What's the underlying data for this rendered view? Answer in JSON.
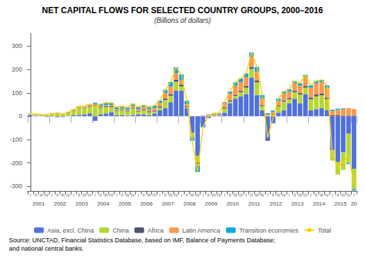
{
  "chart_data": {
    "type": "bar",
    "title": "NET CAPITAL FLOWS FOR SELECTED COUNTRY GROUPS, 2000–2016",
    "subtitle": "(Billions of dollars)",
    "stacked": true,
    "grid": false,
    "legend": "bottom",
    "categories": [
      "I",
      "II",
      "III",
      "IV",
      "I",
      "II",
      "III",
      "IV",
      "I",
      "II",
      "III",
      "IV",
      "I",
      "II",
      "III",
      "IV",
      "I",
      "II",
      "III",
      "IV",
      "I",
      "II",
      "III",
      "IV",
      "I",
      "II",
      "III",
      "IV",
      "I",
      "II",
      "III",
      "IV",
      "I",
      "II",
      "III",
      "IV",
      "I",
      "II",
      "III",
      "IV",
      "I",
      "II",
      "III",
      "IV",
      "I",
      "II",
      "III",
      "IV",
      "I",
      "II",
      "III",
      "IV",
      "I",
      "II",
      "III",
      "IV",
      "I",
      "II",
      "III",
      "IV",
      "I"
    ],
    "year_labels": [
      "2001",
      "2002",
      "2003",
      "2004",
      "2005",
      "2006",
      "2007",
      "2008",
      "2009",
      "2010",
      "2011",
      "2012",
      "2013",
      "2014",
      "2015",
      "20"
    ],
    "series": [
      {
        "name": "Asia, excl. China",
        "values": [
          5,
          2,
          0,
          -3,
          -2,
          -4,
          -3,
          1,
          4,
          6,
          8,
          12,
          -20,
          8,
          12,
          18,
          5,
          5,
          3,
          5,
          8,
          8,
          5,
          12,
          25,
          35,
          60,
          110,
          110,
          35,
          -70,
          -170,
          -45,
          -8,
          3,
          3,
          15,
          55,
          75,
          85,
          95,
          165,
          90,
          25,
          -100,
          -30,
          15,
          25,
          55,
          75,
          55,
          95,
          25,
          30,
          35,
          25,
          -145,
          -195,
          -155,
          -75,
          -225
        ]
      },
      {
        "name": "China",
        "values": [
          2,
          3,
          3,
          5,
          8,
          12,
          8,
          12,
          18,
          30,
          25,
          28,
          45,
          28,
          28,
          22,
          18,
          22,
          18,
          28,
          12,
          18,
          12,
          8,
          12,
          35,
          28,
          38,
          18,
          3,
          -18,
          -28,
          0,
          3,
          3,
          3,
          18,
          8,
          12,
          18,
          28,
          38,
          55,
          18,
          3,
          8,
          28,
          38,
          18,
          28,
          38,
          28,
          48,
          55,
          55,
          48,
          -45,
          -55,
          -75,
          -125,
          -88
        ]
      },
      {
        "name": "Africa",
        "values": [
          1,
          1,
          1,
          1,
          1,
          1,
          1,
          2,
          2,
          2,
          2,
          2,
          3,
          3,
          3,
          3,
          3,
          3,
          3,
          3,
          3,
          4,
          4,
          4,
          5,
          6,
          7,
          8,
          8,
          5,
          -2,
          -5,
          0,
          0,
          2,
          3,
          4,
          5,
          5,
          6,
          7,
          8,
          8,
          5,
          -5,
          3,
          4,
          5,
          5,
          6,
          6,
          6,
          7,
          8,
          8,
          7,
          5,
          5,
          3,
          3,
          3
        ]
      },
      {
        "name": "Latin America",
        "values": [
          2,
          2,
          2,
          2,
          2,
          2,
          2,
          2,
          3,
          3,
          4,
          5,
          5,
          5,
          5,
          5,
          5,
          5,
          5,
          8,
          8,
          10,
          10,
          12,
          15,
          22,
          32,
          28,
          18,
          8,
          -5,
          -8,
          3,
          3,
          3,
          3,
          18,
          28,
          38,
          38,
          38,
          42,
          38,
          28,
          5,
          8,
          18,
          28,
          28,
          32,
          32,
          38,
          42,
          48,
          48,
          42,
          18,
          22,
          28,
          32,
          28
        ]
      },
      {
        "name": "Transition economies",
        "values": [
          1,
          1,
          1,
          1,
          1,
          1,
          1,
          1,
          2,
          2,
          3,
          5,
          5,
          8,
          10,
          10,
          8,
          8,
          8,
          10,
          8,
          8,
          8,
          10,
          10,
          15,
          20,
          25,
          25,
          15,
          -10,
          -28,
          -3,
          2,
          2,
          2,
          5,
          10,
          15,
          15,
          15,
          20,
          20,
          15,
          5,
          5,
          10,
          10,
          10,
          10,
          10,
          10,
          10,
          10,
          10,
          10,
          5,
          5,
          3,
          -5,
          -5
        ]
      },
      {
        "name": "Total",
        "type": "line",
        "values": [
          11,
          9,
          7,
          6,
          10,
          12,
          9,
          18,
          29,
          43,
          42,
          52,
          38,
          52,
          58,
          58,
          39,
          43,
          37,
          54,
          39,
          48,
          39,
          46,
          67,
          113,
          147,
          209,
          179,
          66,
          -105,
          -239,
          -45,
          0,
          13,
          14,
          60,
          106,
          145,
          162,
          183,
          273,
          211,
          91,
          -92,
          -6,
          75,
          106,
          116,
          151,
          141,
          177,
          132,
          151,
          156,
          132,
          -162,
          -218,
          -196,
          -170,
          -287
        ]
      }
    ],
    "ylim": [
      -320,
      355
    ],
    "yticks": [
      -300,
      -200,
      -100,
      0,
      100,
      200,
      300
    ],
    "annotations": [
      "Source: UNCTAD, Financial Statistics Database, based on IMF, Balance of Payments Database;",
      "and national central banks."
    ]
  }
}
